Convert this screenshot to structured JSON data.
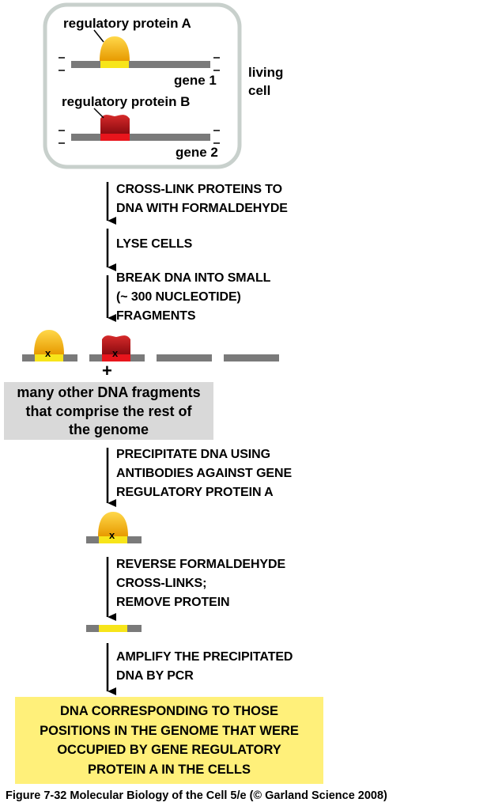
{
  "cell": {
    "protein_a_label": "regulatory protein A",
    "protein_b_label": "regulatory protein B",
    "gene1_label": "gene 1",
    "gene2_label": "gene 2",
    "cell_label_line1": "living",
    "cell_label_line2": "cell"
  },
  "steps": {
    "s1_line1": "CROSS-LINK PROTEINS TO",
    "s1_line2": "DNA WITH FORMALDEHYDE",
    "s2_line1": "LYSE CELLS",
    "s3_line1": "BREAK DNA INTO SMALL",
    "s3_line2": "(~ 300 NUCLEOTIDE)",
    "s3_line3": "FRAGMENTS",
    "s4_line1": "PRECIPITATE DNA USING",
    "s4_line2": "ANTIBODIES AGAINST GENE",
    "s4_line3": "REGULATORY PROTEIN A",
    "s5_line1": "REVERSE FORMALDEHYDE",
    "s5_line2": "CROSS-LINKS;",
    "s5_line3": "REMOVE PROTEIN",
    "s6_line1": "AMPLIFY THE PRECIPITATED",
    "s6_line2": "DNA BY PCR"
  },
  "fragments": {
    "plus": "+",
    "x_mark": "x",
    "other_line1": "many other DNA fragments",
    "other_line2": "that comprise the rest of",
    "other_line3": "the genome"
  },
  "result": {
    "line1": "DNA CORRESPONDING TO THOSE",
    "line2": "POSITIONS IN THE GENOME THAT WERE",
    "line3": "OCCUPIED BY GENE REGULATORY",
    "line4": "PROTEIN A IN THE CELLS"
  },
  "caption": "Figure 7-32  Molecular Biology of the Cell 5/e (© Garland Science 2008)",
  "colors": {
    "dna_gray": "#7a7a7a",
    "protein_a": "#f5b400",
    "protein_a_site": "#f7e51a",
    "protein_b": "#c0141b",
    "protein_b_site": "#e8151c",
    "cell_border": "#c8d0cc",
    "box_gray": "#d9d9d9",
    "box_yellow": "#fff07a"
  }
}
